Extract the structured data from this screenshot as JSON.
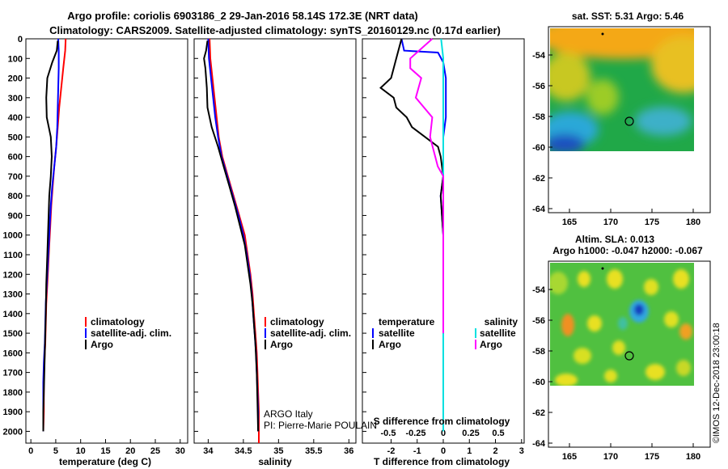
{
  "chart_data": {
    "header": {
      "line1": "Argo profile: coriolis 6903186_2 29-Jan-2016 58.14S 172.3E (NRT data)",
      "line2": "Climatology: CARS2009. Satellite-adjusted climatology: synTS_20160129.nc (0.17d earlier)"
    },
    "depth_axis": {
      "ticks": [
        0,
        100,
        200,
        300,
        400,
        500,
        600,
        700,
        800,
        900,
        1000,
        1100,
        1200,
        1300,
        1400,
        1500,
        1600,
        1700,
        1800,
        1900,
        2000
      ],
      "labels": [
        "0",
        "100",
        "200",
        "300",
        "400",
        "500",
        "600",
        "700",
        "800",
        "900",
        "1000",
        "1100",
        "1200",
        "1300",
        "1400",
        "1500",
        "1600",
        "1700",
        "1800",
        "1900",
        "2000"
      ],
      "range": [
        0,
        2060
      ]
    },
    "temperature_panel": {
      "type": "line",
      "xlabel": "temperature (deg C)",
      "xlim": [
        -1,
        31.5
      ],
      "ticks": [
        0,
        5,
        10,
        15,
        20,
        25,
        30
      ],
      "tick_labels": [
        "0",
        "5",
        "10",
        "15",
        "20",
        "25",
        "30"
      ],
      "legend": [
        "climatology",
        "satellite-adj. clim.",
        "Argo"
      ],
      "series": [
        {
          "name": "climatology",
          "color": "#ff0000",
          "x": [
            7.0,
            6.9,
            6.5,
            6.1,
            5.7,
            5.4,
            5.1,
            4.7,
            4.4,
            4.1,
            3.9,
            3.7,
            3.5,
            3.3,
            3.1,
            3.0,
            2.9,
            2.7,
            2.6,
            2.6,
            2.5
          ],
          "depth": [
            0,
            60,
            150,
            250,
            350,
            450,
            550,
            650,
            750,
            850,
            950,
            1050,
            1150,
            1250,
            1350,
            1450,
            1550,
            1650,
            1750,
            1900,
            2000
          ]
        },
        {
          "name": "satellite-adj. clim.",
          "color": "#0000ff",
          "x": [
            5.5,
            5.6,
            5.6,
            5.5,
            5.4,
            5.3,
            5.1,
            4.7,
            4.3,
            4.0,
            3.8,
            3.6,
            3.4,
            3.2,
            3.0,
            2.9,
            2.8,
            2.6,
            2.5,
            2.5,
            2.5
          ],
          "depth": [
            0,
            60,
            150,
            250,
            350,
            450,
            550,
            650,
            750,
            850,
            950,
            1050,
            1150,
            1250,
            1350,
            1450,
            1550,
            1650,
            1750,
            1900,
            2000
          ]
        },
        {
          "name": "Argo",
          "color": "#000000",
          "x": [
            5.4,
            5.2,
            4.3,
            3.3,
            3.1,
            3.2,
            3.6,
            4.0,
            4.2,
            4.0,
            3.7,
            3.5,
            3.3,
            3.1,
            3.0,
            2.9,
            2.8,
            2.7,
            2.6,
            2.5,
            2.5
          ],
          "depth": [
            10,
            60,
            120,
            200,
            300,
            400,
            450,
            500,
            600,
            700,
            800,
            950,
            1100,
            1250,
            1400,
            1500,
            1600,
            1700,
            1800,
            1900,
            2000
          ]
        }
      ]
    },
    "salinity_panel": {
      "type": "line",
      "xlabel": "salinity",
      "xlim": [
        33.8,
        36.1
      ],
      "ticks": [
        34,
        34.5,
        35,
        35.5,
        36
      ],
      "tick_labels": [
        "34",
        "34.5",
        "35",
        "35.5",
        "36"
      ],
      "legend": [
        "climatology",
        "satellite-adj. clim.",
        "Argo"
      ],
      "annotation": [
        "ARGO Italy",
        "PI: Pierre-Marie POULAIN"
      ],
      "series": [
        {
          "name": "climatology",
          "color": "#ff0000",
          "x": [
            34.02,
            34.03,
            34.06,
            34.09,
            34.12,
            34.15,
            34.2,
            34.28,
            34.36,
            34.44,
            34.52,
            34.56,
            34.6,
            34.63,
            34.65,
            34.67,
            34.69,
            34.7,
            34.71,
            34.72,
            34.72
          ],
          "depth": [
            0,
            100,
            200,
            300,
            400,
            500,
            600,
            700,
            800,
            900,
            1000,
            1100,
            1200,
            1300,
            1400,
            1500,
            1600,
            1700,
            1800,
            1900,
            2060
          ]
        },
        {
          "name": "satellite-adj. clim.",
          "color": "#0000ff",
          "x": [
            34.0,
            34.01,
            34.04,
            34.07,
            34.1,
            34.14,
            34.19,
            34.27,
            34.35,
            34.43,
            34.5,
            34.55,
            34.59,
            34.62,
            34.64,
            34.66,
            34.68,
            34.69,
            34.7,
            34.71,
            34.71
          ],
          "depth": [
            0,
            100,
            200,
            300,
            400,
            500,
            600,
            700,
            800,
            900,
            1000,
            1100,
            1200,
            1300,
            1400,
            1500,
            1600,
            1700,
            1800,
            1900,
            2000
          ]
        },
        {
          "name": "Argo",
          "color": "#000000",
          "x": [
            33.99,
            33.97,
            33.94,
            33.96,
            33.98,
            33.99,
            34.05,
            34.14,
            34.22,
            34.3,
            34.38,
            34.45,
            34.52,
            34.56,
            34.6,
            34.63,
            34.65,
            34.67,
            34.69,
            34.7,
            34.71
          ],
          "depth": [
            10,
            60,
            100,
            150,
            250,
            350,
            450,
            550,
            650,
            750,
            850,
            950,
            1050,
            1150,
            1250,
            1350,
            1450,
            1550,
            1700,
            1850,
            2000
          ]
        }
      ]
    },
    "difference_panel": {
      "type": "line",
      "xlabel": "T difference from climatology",
      "xlabel_top": "S difference from climatology",
      "xlim": [
        -3.1,
        3.1
      ],
      "ticks": [
        -2,
        -1,
        0,
        1,
        2,
        3
      ],
      "tick_labels": [
        "-2",
        "-1",
        "0",
        "1",
        "2",
        "3"
      ],
      "top_ticks": [
        -0.5,
        -0.25,
        0,
        0.25,
        0.5
      ],
      "top_tick_labels": [
        "-0.5",
        "-0.25",
        "0",
        "0.25",
        "0.5"
      ],
      "legend_temperature": {
        "title": "temperature",
        "items": [
          "satellite",
          "Argo"
        ]
      },
      "legend_salinity": {
        "title": "salinity",
        "items": [
          "satellite",
          "Argo"
        ]
      },
      "series": [
        {
          "name": "T satellite",
          "color": "#0000ff",
          "x": [
            -1.6,
            -1.5,
            -0.2,
            0.0,
            0.1,
            0.1,
            0.1,
            0.0,
            0.0,
            0.0,
            -0.1,
            0.0,
            0.0,
            0.0,
            0.0,
            0.0
          ],
          "depth": [
            0,
            60,
            70,
            120,
            200,
            300,
            400,
            500,
            600,
            700,
            800,
            1000,
            1200,
            1400,
            1600,
            1800
          ]
        },
        {
          "name": "T Argo",
          "color": "#000000",
          "x": [
            -1.6,
            -1.8,
            -2.0,
            -2.4,
            -1.9,
            -1.8,
            -1.4,
            -1.2,
            -0.2,
            -0.1,
            0.0,
            -0.1,
            0.0,
            0.0,
            0.0,
            0.0
          ],
          "depth": [
            0,
            100,
            200,
            250,
            300,
            350,
            400,
            450,
            550,
            600,
            700,
            800,
            1000,
            1200,
            1600,
            1900
          ]
        },
        {
          "name": "S satellite",
          "color": "#00e0e0",
          "x": [
            -0.02,
            0.0,
            0.0,
            0.0,
            0.0,
            0.0,
            0.0,
            0.0,
            0.0,
            0.0
          ],
          "depth": [
            0,
            100,
            200,
            400,
            600,
            800,
            1000,
            1400,
            1700,
            2000
          ]
        },
        {
          "name": "S Argo",
          "color": "#ff00ff",
          "x": [
            -0.1,
            -0.3,
            -0.3,
            -0.2,
            -0.25,
            -0.1,
            -0.12,
            -0.05,
            0.0,
            0.0,
            0.0,
            0.0
          ],
          "depth": [
            0,
            100,
            150,
            200,
            300,
            400,
            500,
            650,
            700,
            900,
            1200,
            1500
          ]
        }
      ]
    },
    "sst_map": {
      "title": "sat. SST: 5.31  Argo: 5.46",
      "lat_ticks": [
        "-54",
        "-56",
        "-58",
        "-60",
        "-62",
        "-64"
      ],
      "lon_ticks": [
        "165",
        "170",
        "175",
        "180"
      ],
      "float_lon": 172.3,
      "float_lat": -58.14
    },
    "sla_map": {
      "title1": "Altim. SLA: 0.013",
      "title2": "Argo h1000: -0.047  h2000: -0.067",
      "lat_ticks": [
        "-54",
        "-56",
        "-58",
        "-60",
        "-62",
        "-64"
      ],
      "lon_ticks": [
        "165",
        "170",
        "175",
        "180"
      ],
      "float_lon": 172.3,
      "float_lat": -58.14
    },
    "credit": "©IMOS 12-Dec-2018 23:00:18"
  }
}
